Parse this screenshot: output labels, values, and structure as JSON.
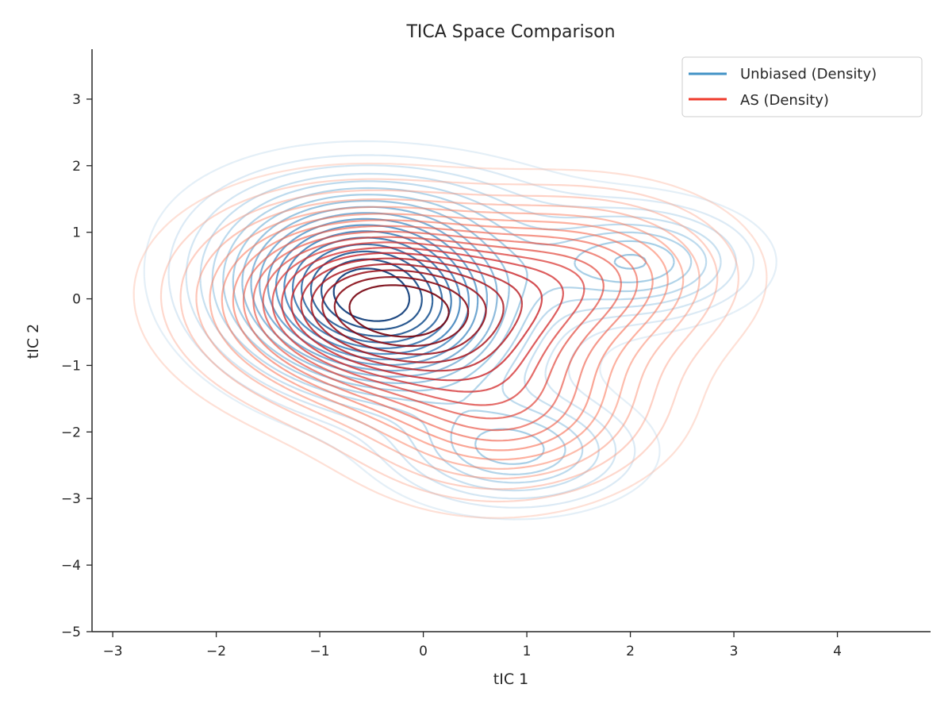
{
  "chart_data": {
    "type": "contour",
    "title": "TICA Space Comparison",
    "xlabel": "tIC 1",
    "ylabel": "tIC 2",
    "xlim": [
      -3.2,
      4.9
    ],
    "ylim": [
      -5,
      3.75
    ],
    "xticks": [
      -3,
      -2,
      -1,
      0,
      1,
      2,
      3,
      4
    ],
    "yticks": [
      -5,
      -4,
      -3,
      -2,
      -1,
      0,
      1,
      2,
      3
    ],
    "xtick_labels": [
      "−3",
      "−2",
      "−1",
      "0",
      "1",
      "2",
      "3",
      "4"
    ],
    "ytick_labels": [
      "−5",
      "−4",
      "−3",
      "−2",
      "−1",
      "0",
      "1",
      "2",
      "3"
    ],
    "legend_position": "top-right",
    "grid": false,
    "series": [
      {
        "name": "Unbiased (Density)",
        "color": "#4292c6",
        "colormap": "Blues",
        "levels": 18,
        "components": [
          {
            "mu": [
              -0.5,
              0.0
            ],
            "sigma": [
              0.95,
              0.95
            ],
            "rho": -0.15,
            "weight": 0.68
          },
          {
            "mu": [
              2.1,
              0.55
            ],
            "sigma": [
              0.7,
              0.55
            ],
            "rho": 0.0,
            "weight": 0.12
          },
          {
            "mu": [
              0.9,
              -2.3
            ],
            "sigma": [
              0.75,
              0.55
            ],
            "rho": 0.0,
            "weight": 0.12
          },
          {
            "mu": [
              0.0,
              1.3
            ],
            "sigma": [
              1.1,
              0.6
            ],
            "rho": 0.0,
            "weight": 0.08
          }
        ]
      },
      {
        "name": "AS (Density)",
        "color": "#ef3b2c",
        "colormap": "Reds",
        "levels": 18,
        "components": [
          {
            "mu": [
              -0.4,
              -0.15
            ],
            "sigma": [
              1.05,
              0.95
            ],
            "rho": -0.1,
            "weight": 0.62
          },
          {
            "mu": [
              1.6,
              0.35
            ],
            "sigma": [
              0.9,
              0.8
            ],
            "rho": 0.0,
            "weight": 0.2
          },
          {
            "mu": [
              0.9,
              -1.8
            ],
            "sigma": [
              0.9,
              0.8
            ],
            "rho": 0.1,
            "weight": 0.18
          }
        ]
      }
    ]
  }
}
